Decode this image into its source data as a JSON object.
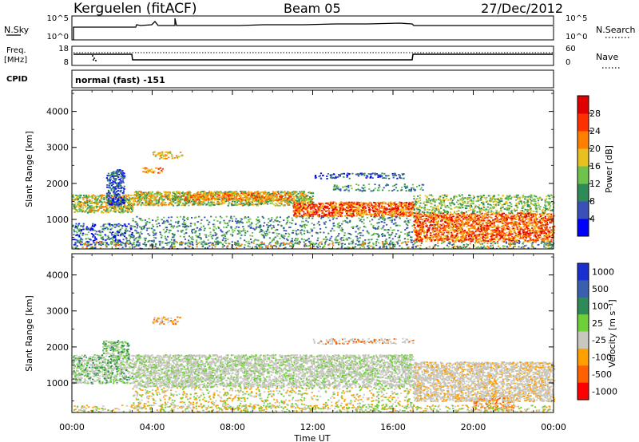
{
  "header": {
    "station": "Kerguelen (fitACF)",
    "beam": "Beam 05",
    "date": "27/Dec/2012"
  },
  "top_panels": {
    "nsky_label": "N.Sky",
    "nsky_ticks": [
      "10^5",
      "10^0"
    ],
    "nsearch_label": "N.Search",
    "nsearch_ticks": [
      "10^5",
      "10^0"
    ],
    "freq_label_1": "Freq.",
    "freq_label_2": "[MHz]",
    "freq_ticks": [
      "18",
      "8"
    ],
    "nave_label": "Nave",
    "nave_ticks": [
      "60",
      "0"
    ],
    "cpid_label": "CPID",
    "cpid_text": "normal (fast) -151"
  },
  "x_axis": {
    "label": "Time UT",
    "ticks": [
      "00:00",
      "04:00",
      "08:00",
      "12:00",
      "16:00",
      "20:00",
      "00:00"
    ]
  },
  "chart_data": [
    {
      "type": "heatmap",
      "title": "",
      "ylabel": "Slant Range [km]",
      "xlabel": "Time UT",
      "y_ticks": [
        "1000",
        "2000",
        "3000",
        "4000"
      ],
      "ylim": [
        180,
        4590
      ],
      "xlim": [
        "00:00",
        "24:00"
      ],
      "colorbar": {
        "label": "Power [dB]",
        "ticks": [
          "4",
          "8",
          "12",
          "16",
          "20",
          "24",
          "28"
        ],
        "range": [
          0,
          32
        ],
        "colors": [
          "#0000ff",
          "#3a4fb8",
          "#2e8b57",
          "#6fc24a",
          "#e8c020",
          "#ff8000",
          "#ff3000",
          "#e00000"
        ]
      }
    },
    {
      "type": "heatmap",
      "title": "",
      "ylabel": "Slant Range [km]",
      "xlabel": "Time UT",
      "y_ticks": [
        "1000",
        "2000",
        "3000",
        "4000"
      ],
      "ylim": [
        180,
        4590
      ],
      "xlim": [
        "00:00",
        "24:00"
      ],
      "colorbar": {
        "label": "Velocity [m s⁻¹]",
        "ticks": [
          "1000",
          "500",
          "100",
          "25",
          "-25",
          "-100",
          "-500",
          "-1000"
        ],
        "colors": [
          "#1a2fd0",
          "#3a5fb0",
          "#2e8b57",
          "#6fcf3a",
          "#c8c8c0",
          "#ffa000",
          "#ff6000",
          "#ff0000"
        ]
      }
    }
  ]
}
